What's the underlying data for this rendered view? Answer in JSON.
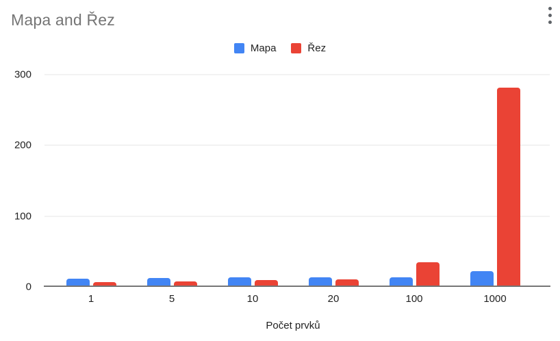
{
  "header": {
    "title": "Mapa and Řez"
  },
  "icons": {
    "menu": "three-dot-vertical-kebab-menu"
  },
  "legend": {
    "position": "top",
    "items": [
      {
        "label": "Mapa",
        "color": "#4285f4"
      },
      {
        "label": "Řez",
        "color": "#ea4335"
      }
    ]
  },
  "chart_data": {
    "type": "bar",
    "title": "Mapa and Řez",
    "categories": [
      "1",
      "5",
      "10",
      "20",
      "100",
      "1000"
    ],
    "series": [
      {
        "name": "Mapa",
        "color": "#4285f4",
        "values": [
          12,
          13,
          14,
          14,
          14,
          22
        ]
      },
      {
        "name": "Řez",
        "color": "#ea4335",
        "values": [
          7,
          8,
          10,
          11,
          35,
          282
        ]
      }
    ],
    "xlabel": "Počet prvků",
    "ylabel": "",
    "yticks": [
      0,
      100,
      200,
      300
    ],
    "ylim": [
      0,
      300
    ],
    "grid": true,
    "legend_position": "top"
  },
  "colors": {
    "title_text": "#757575",
    "axis_text": "#222222",
    "gridline": "#e6e6e6",
    "baseline": "#757575",
    "background": "#ffffff",
    "menu_icon": "#5f6368"
  }
}
